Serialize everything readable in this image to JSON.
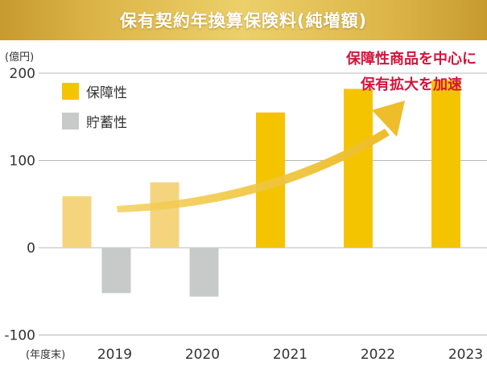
{
  "title": "保有契約年換算保険料(純増額)",
  "colors": {
    "banner": "#d4aa3c",
    "hoyo_highlight": "#f5c400",
    "hoyo_muted": "#f4d57e",
    "chochiku": "#c8caca",
    "arrow": "#edbd2a",
    "annotation": "#d2153c"
  },
  "chart_data": {
    "type": "bar",
    "title": "保有契約年換算保険料(純増額)",
    "ylabel": "(億円)",
    "xlabel": "(年度末)",
    "categories": [
      "2019",
      "2020",
      "2021",
      "2022",
      "2023"
    ],
    "ylim": [
      -100,
      200
    ],
    "yticks": [
      200,
      100,
      0,
      -100
    ],
    "ytick_labels": [
      "200",
      "100",
      "0",
      "-100"
    ],
    "grid": "horizontal",
    "legend_position": "top-left",
    "series": [
      {
        "name": "保障性",
        "values": [
          59,
          75,
          155,
          182,
          192
        ]
      },
      {
        "name": "貯蓄性",
        "values": [
          -52,
          -56,
          null,
          null,
          null
        ]
      }
    ],
    "annotation": {
      "lines": [
        "保障性商品を中心に",
        "保有拡大を加速"
      ]
    }
  }
}
